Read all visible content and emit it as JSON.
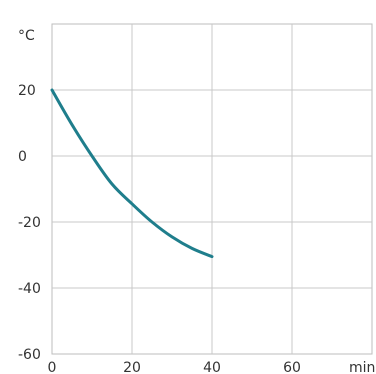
{
  "chart_data": {
    "type": "line",
    "xlabel": "min",
    "ylabel": "°C",
    "xlim": [
      0,
      80
    ],
    "ylim": [
      -60,
      40
    ],
    "x_ticks": [
      0,
      20,
      40,
      60
    ],
    "y_ticks": [
      -60,
      -40,
      -20,
      0,
      20
    ],
    "x_tick_labels": [
      "0",
      "20",
      "40",
      "60"
    ],
    "y_tick_labels": [
      "-60",
      "-40",
      "-20",
      "0",
      "20"
    ],
    "grid": true,
    "colors": {
      "series": "#1f7e8c",
      "grid": "#c8c8c8"
    },
    "series": [
      {
        "x": [
          0,
          5,
          10,
          15,
          20,
          25,
          30,
          35,
          40
        ],
        "y": [
          20,
          9.5,
          0,
          -8.5,
          -14.5,
          -20,
          -24.5,
          -28,
          -30.5
        ]
      }
    ]
  }
}
